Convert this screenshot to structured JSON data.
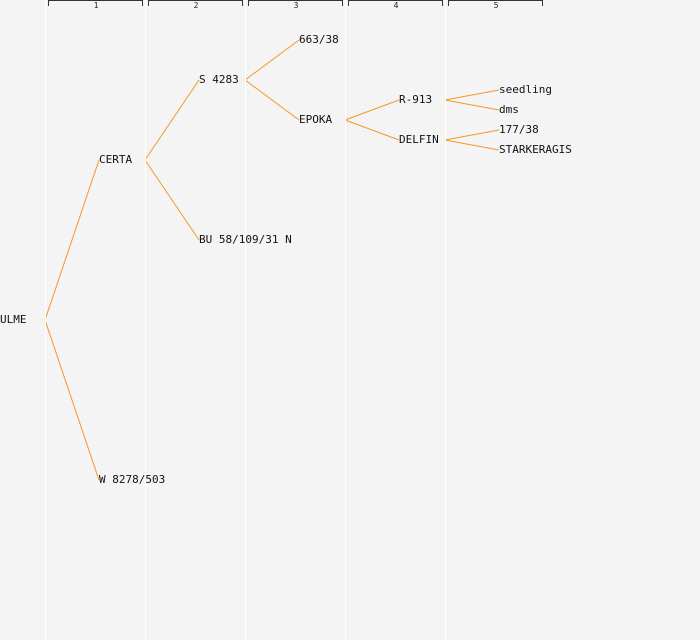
{
  "generations": [
    "1",
    "2",
    "3",
    "4",
    "5"
  ],
  "colors": {
    "edge": "#f5962a",
    "background": "#f4f4f4",
    "divider": "#ffffff",
    "text": "#111111"
  },
  "tree": {
    "id": "ulme",
    "label": "ULME",
    "children": [
      {
        "id": "certa",
        "label": "CERTA",
        "children": [
          {
            "id": "s-4283",
            "label": "S 4283",
            "children": [
              {
                "id": "663-38",
                "label": "663/38"
              },
              {
                "id": "epoka",
                "label": "EPOKA",
                "children": [
                  {
                    "id": "r-913",
                    "label": "R-913",
                    "children": [
                      {
                        "id": "seedling",
                        "label": "seedling"
                      },
                      {
                        "id": "dms",
                        "label": "dms"
                      }
                    ]
                  },
                  {
                    "id": "delfin",
                    "label": "DELFIN",
                    "children": [
                      {
                        "id": "177-38",
                        "label": "177/38"
                      },
                      {
                        "id": "starkeragis",
                        "label": "STARKERAGIS"
                      }
                    ]
                  }
                ]
              }
            ]
          },
          {
            "id": "bu-58-109-31-n",
            "label": "BU 58/109/31 N"
          }
        ]
      },
      {
        "id": "w-8278-503",
        "label": "W 8278/503"
      }
    ]
  }
}
